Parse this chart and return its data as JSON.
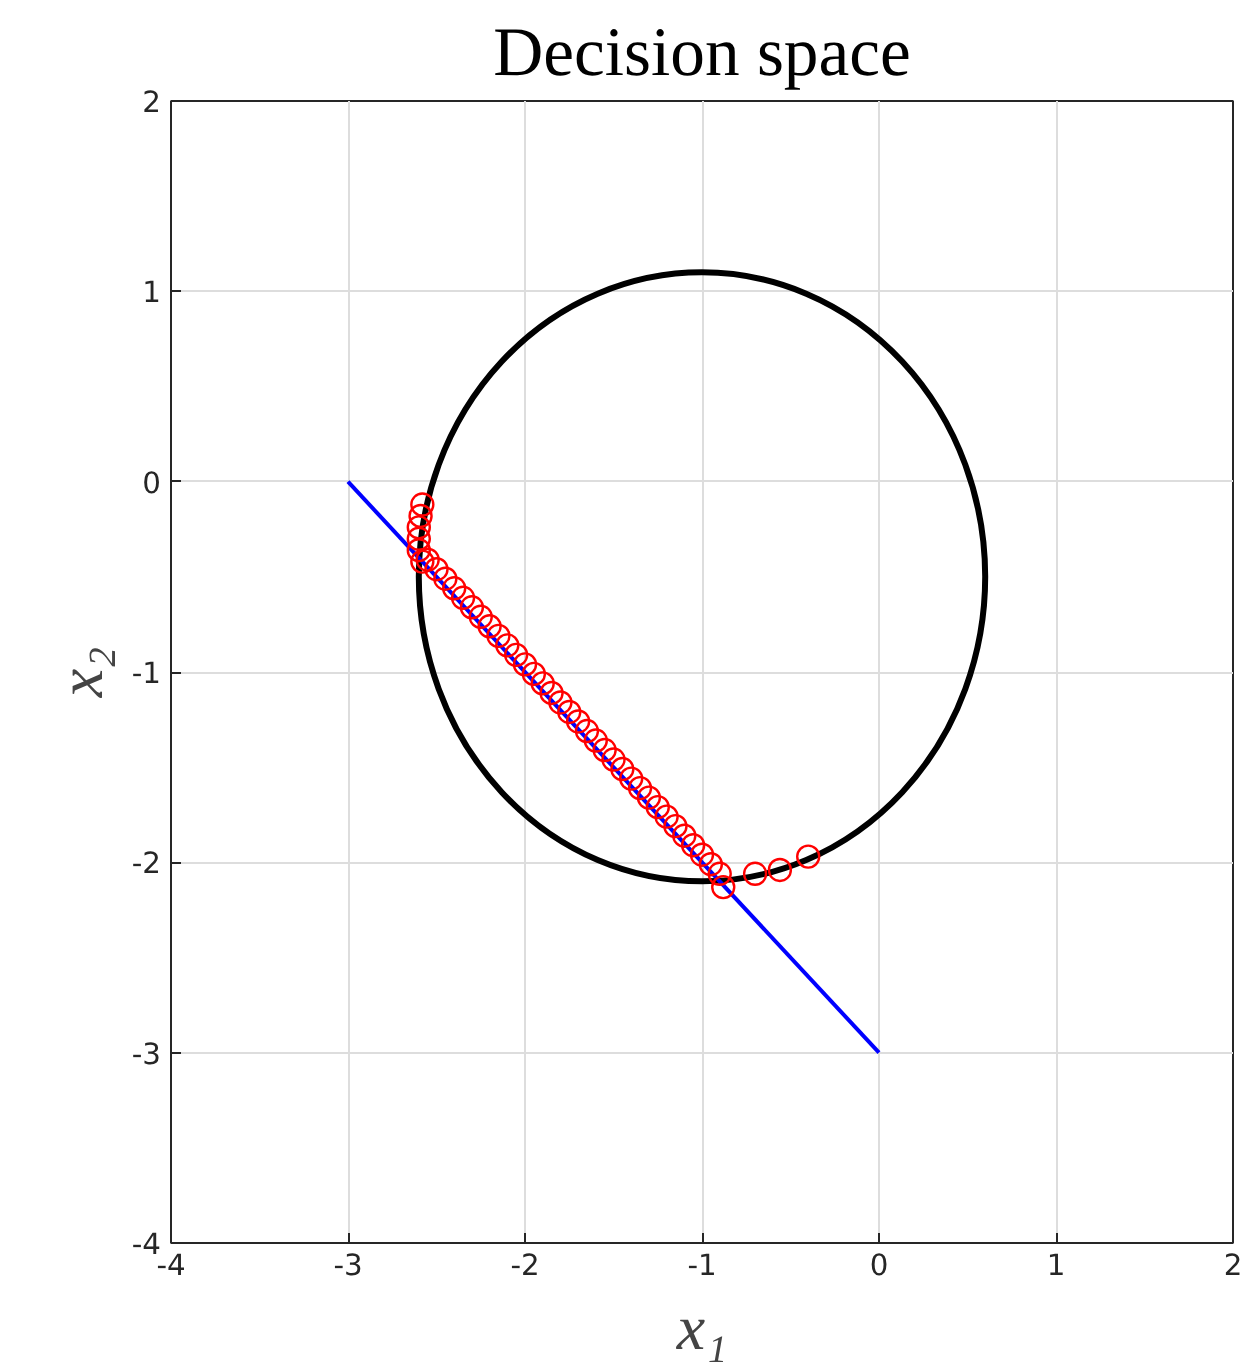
{
  "chart_data": {
    "type": "line",
    "title": "Decision space",
    "xlabel": "x₁",
    "ylabel": "x₂",
    "xlim": [
      -4,
      2
    ],
    "ylim": [
      -4,
      2
    ],
    "xticks": [
      -4,
      -3,
      -2,
      -1,
      0,
      1,
      2
    ],
    "yticks": [
      -4,
      -3,
      -2,
      -1,
      0,
      1,
      2
    ],
    "grid": true,
    "series": [
      {
        "color": "#0000ff",
        "x": [
          -3,
          0
        ],
        "values": [
          0,
          -3
        ]
      },
      {
        "type": "scatter",
        "color": "#ff0000",
        "marker": "circle",
        "x": [
          -2.58,
          -2.59,
          -2.6,
          -2.6,
          -2.6,
          -2.58,
          -2.55,
          -2.5,
          -2.45,
          -2.4,
          -2.35,
          -2.3,
          -2.25,
          -2.2,
          -2.15,
          -2.1,
          -2.05,
          -2.0,
          -1.95,
          -1.9,
          -1.85,
          -1.8,
          -1.75,
          -1.7,
          -1.65,
          -1.6,
          -1.55,
          -1.5,
          -1.45,
          -1.4,
          -1.35,
          -1.3,
          -1.25,
          -1.2,
          -1.15,
          -1.1,
          -1.05,
          -1.0,
          -0.95,
          -0.9,
          -0.88,
          -0.7,
          -0.56,
          -0.4
        ],
        "values": [
          -0.12,
          -0.18,
          -0.24,
          -0.3,
          -0.36,
          -0.42,
          -0.41,
          -0.46,
          -0.51,
          -0.56,
          -0.61,
          -0.66,
          -0.71,
          -0.76,
          -0.81,
          -0.86,
          -0.91,
          -0.96,
          -1.01,
          -1.06,
          -1.11,
          -1.16,
          -1.21,
          -1.26,
          -1.31,
          -1.36,
          -1.41,
          -1.46,
          -1.51,
          -1.56,
          -1.61,
          -1.66,
          -1.71,
          -1.76,
          -1.81,
          -1.86,
          -1.91,
          -1.96,
          -2.01,
          -2.06,
          -2.13,
          -2.06,
          -2.04,
          -1.97
        ]
      }
    ]
  }
}
